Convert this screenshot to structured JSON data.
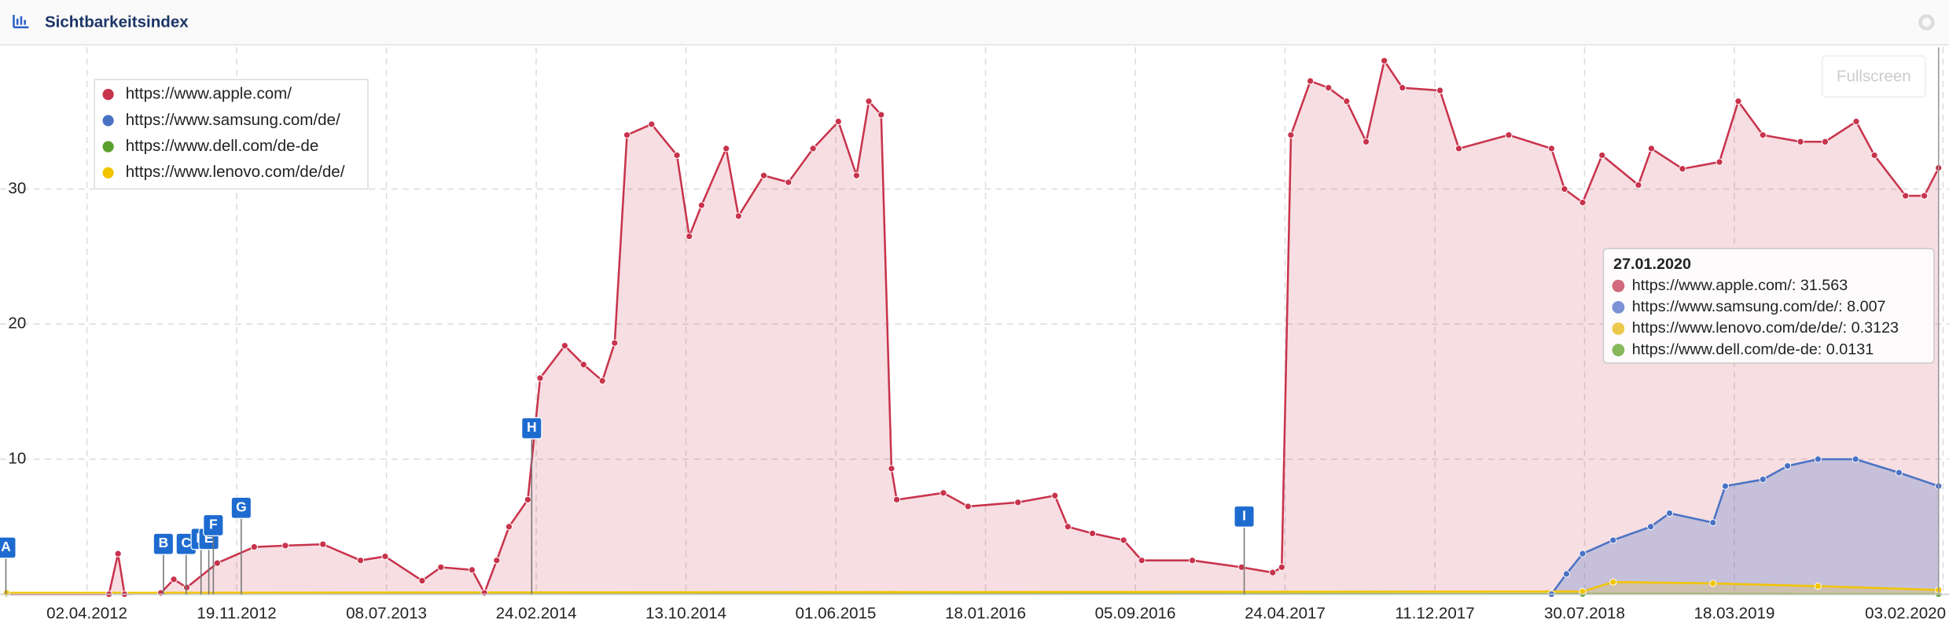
{
  "header": {
    "title": "Sichtbarkeitsindex",
    "button": "Fullscreen"
  },
  "chart_data": {
    "type": "area",
    "ylim": [
      0,
      40.5
    ],
    "yticks": [
      10,
      20,
      30
    ],
    "xlim": [
      "20.11.2011",
      "12.02.2020"
    ],
    "xticks": [
      "02.04.2012",
      "19.11.2012",
      "08.07.2013",
      "24.02.2014",
      "13.10.2014",
      "01.06.2015",
      "18.01.2016",
      "05.09.2016",
      "24.04.2017",
      "11.12.2017",
      "30.07.2018",
      "18.03.2019",
      "03.02.2020"
    ],
    "grid": true,
    "legend": "top-left",
    "series": [
      {
        "name": "https://www.apple.com/",
        "color": "#c8334c",
        "x": [
          "30.11.2011",
          "06.05.2012",
          "20.05.2012",
          "30.05.2012",
          "25.07.2012",
          "14.08.2012",
          "03.09.2012",
          "20.10.2012",
          "16.12.2012",
          "02.02.2013",
          "01.04.2013",
          "29.05.2013",
          "06.07.2013",
          "01.09.2013",
          "30.09.2013",
          "17.11.2013",
          "06.12.2013",
          "25.12.2013",
          "13.01.2014",
          "11.02.2014",
          "02.03.2014",
          "09.04.2014",
          "08.05.2014",
          "06.06.2014",
          "25.06.2014",
          "14.07.2014",
          "21.08.2014",
          "29.09.2014",
          "18.10.2014",
          "06.11.2014",
          "14.12.2014",
          "02.01.2015",
          "10.02.2015",
          "20.03.2015",
          "27.04.2015",
          "05.06.2015",
          "03.07.2015",
          "22.07.2015",
          "10.08.2015",
          "26.08.2015",
          "03.09.2015",
          "14.11.2015",
          "22.12.2015",
          "08.03.2016",
          "04.05.2016",
          "24.05.2016",
          "01.07.2016",
          "18.08.2016",
          "15.09.2016",
          "02.12.2016",
          "16.02.2017",
          "05.04.2017",
          "19.04.2017",
          "03.05.2017",
          "02.06.2017",
          "30.06.2017",
          "28.07.2017",
          "27.08.2017",
          "24.09.2017",
          "22.10.2017",
          "19.12.2017",
          "17.01.2018",
          "04.04.2018",
          "09.06.2018",
          "29.06.2018",
          "27.07.2018",
          "26.08.2018",
          "21.10.2018",
          "10.11.2018",
          "28.12.2018",
          "23.02.2019",
          "24.03.2019",
          "01.05.2019",
          "28.06.2019",
          "05.08.2019",
          "22.09.2019",
          "20.10.2019",
          "07.12.2019",
          "05.01.2020",
          "27.01.2020"
        ],
        "values": [
          0,
          0,
          3,
          0,
          0.1,
          1.1,
          0.5,
          2.3,
          3.5,
          3.6,
          3.7,
          2.5,
          2.8,
          1.0,
          2.0,
          1.8,
          0.1,
          2.5,
          5.0,
          7.0,
          16,
          18.4,
          17,
          15.8,
          18.6,
          34,
          34.8,
          32.5,
          26.5,
          28.8,
          33,
          28,
          31,
          30.5,
          33,
          35,
          31,
          36.5,
          35.5,
          9.3,
          7,
          7.5,
          6.5,
          6.8,
          7.3,
          5,
          4.5,
          4,
          2.5,
          2.5,
          2,
          1.6,
          2,
          34,
          38,
          37.5,
          36.5,
          33.5,
          39.5,
          37.5,
          37.3,
          33,
          34,
          33,
          30,
          29,
          32.5,
          30.3,
          33,
          31.5,
          32,
          36.5,
          34,
          33.5,
          33.5,
          35,
          32.5,
          29.5,
          29.5,
          31.563
        ]
      },
      {
        "name": "https://www.samsung.com/de/",
        "color": "#4a72c4",
        "x": [
          "09.06.2018",
          "02.07.2018",
          "27.07.2018",
          "12.09.2018",
          "09.11.2018",
          "08.12.2018",
          "13.02.2019",
          "04.03.2019",
          "01.05.2019",
          "08.06.2019",
          "25.07.2019",
          "21.09.2019",
          "27.11.2019",
          "27.01.2020"
        ],
        "values": [
          0,
          1.5,
          3,
          4,
          5,
          6,
          5.3,
          8,
          8.5,
          9.5,
          10,
          10,
          9,
          8.007
        ]
      },
      {
        "name": "https://www.dell.com/de-de",
        "color": "#5aa02c",
        "x": [
          "30.11.2011",
          "27.07.2018",
          "27.01.2020"
        ],
        "values": [
          0.02,
          0.02,
          0.0131
        ]
      },
      {
        "name": "https://www.lenovo.com/de/de/",
        "color": "#f2c400",
        "x": [
          "30.11.2011",
          "27.07.2018",
          "12.09.2018",
          "13.02.2019",
          "25.07.2019",
          "27.01.2020"
        ],
        "values": [
          0.1,
          0.2,
          0.9,
          0.8,
          0.6,
          0.3123
        ]
      }
    ],
    "flags": [
      {
        "label": "A",
        "x": "29.11.2011"
      },
      {
        "label": "B",
        "x": "29.07.2012"
      },
      {
        "label": "C",
        "x": "02.09.2012"
      },
      {
        "label": "D",
        "x": "25.09.2012"
      },
      {
        "label": "E",
        "x": "07.10.2012"
      },
      {
        "label": "F",
        "x": "14.10.2012"
      },
      {
        "label": "G",
        "x": "26.11.2012"
      },
      {
        "label": "H",
        "x": "17.02.2014"
      },
      {
        "label": "I",
        "x": "20.02.2017"
      }
    ],
    "tooltip": {
      "title": "27.01.2020",
      "rows": [
        {
          "text": "https://www.apple.com/: 31.563",
          "color": "#d06a7c"
        },
        {
          "text": "https://www.samsung.com/de/: 8.007",
          "color": "#7b92d6"
        },
        {
          "text": "https://www.lenovo.com/de/de/: 0.3123",
          "color": "#ecc94b"
        },
        {
          "text": "https://www.dell.com/de-de: 0.0131",
          "color": "#86b95a"
        }
      ]
    }
  }
}
